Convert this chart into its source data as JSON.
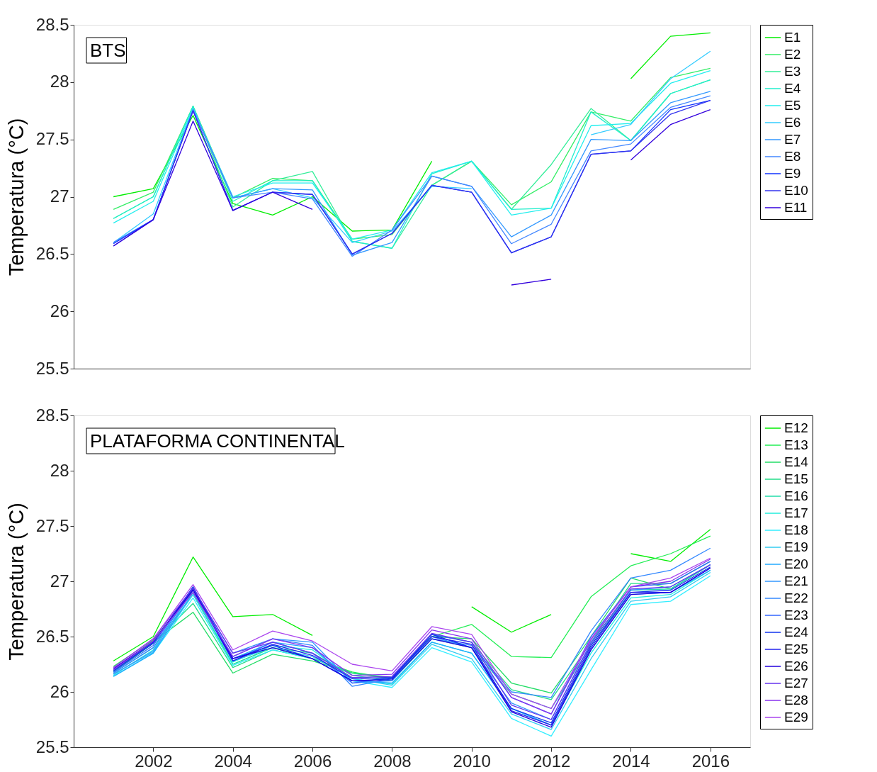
{
  "chart_data": [
    {
      "type": "line",
      "ylabel": "Temperatura (°C)",
      "annotations": [
        "BTS"
      ],
      "x": [
        2001,
        2002,
        2003,
        2004,
        2005,
        2006,
        2007,
        2008,
        2009,
        2010,
        2011,
        2012,
        2013,
        2014,
        2015,
        2016
      ],
      "xlim": [
        2000,
        2017
      ],
      "xticks": [
        2002,
        2004,
        2006,
        2008,
        2010,
        2012,
        2014,
        2016
      ],
      "ylim": [
        25.5,
        28.5
      ],
      "yticks": [
        25.5,
        26,
        26.5,
        27,
        27.5,
        28,
        28.5
      ],
      "tick_labels": "y",
      "grid": false,
      "legend": "right",
      "series": [
        {
          "name": "E1",
          "color": "#00ee00",
          "values": [
            27.0,
            27.07,
            27.71,
            26.94,
            26.84,
            27.0,
            26.7,
            26.71,
            27.31,
            null,
            null,
            null,
            null,
            28.03,
            28.4,
            28.43
          ]
        },
        {
          "name": "E2",
          "color": "#33ee66",
          "values": [
            26.89,
            27.04,
            27.79,
            26.99,
            27.16,
            27.14,
            26.63,
            26.67,
            27.1,
            27.31,
            26.93,
            27.13,
            27.74,
            27.66,
            28.04,
            28.12
          ]
        },
        {
          "name": "E3",
          "color": "#33ee99",
          "values": [
            26.81,
            27.0,
            27.79,
            26.91,
            27.14,
            27.22,
            26.61,
            26.55,
            27.1,
            27.31,
            26.89,
            27.28,
            27.77,
            27.49,
            27.9,
            28.02
          ]
        },
        {
          "name": "E4",
          "color": "#22eecc",
          "values": [
            26.81,
            27.0,
            27.79,
            26.96,
            27.14,
            27.14,
            26.61,
            26.55,
            27.2,
            27.31,
            26.89,
            26.9,
            27.74,
            27.49,
            27.9,
            28.02
          ]
        },
        {
          "name": "E5",
          "color": "#22eeee",
          "values": [
            26.77,
            26.96,
            27.77,
            27.0,
            27.12,
            27.12,
            26.63,
            26.71,
            27.21,
            27.31,
            26.84,
            26.9,
            27.62,
            27.64,
            27.99,
            28.1
          ]
        },
        {
          "name": "E6",
          "color": "#33ccff",
          "values": [
            26.6,
            26.85,
            27.77,
            26.99,
            27.07,
            26.99,
            26.6,
            26.7,
            27.09,
            27.07,
            null,
            null,
            27.54,
            27.63,
            28.03,
            28.27
          ]
        },
        {
          "name": "E7",
          "color": "#3399ff",
          "values": [
            26.6,
            26.8,
            27.76,
            26.99,
            27.07,
            27.06,
            26.49,
            26.6,
            27.18,
            27.09,
            26.65,
            26.84,
            27.5,
            27.49,
            27.82,
            27.92
          ]
        },
        {
          "name": "E8",
          "color": "#4488ff",
          "values": [
            26.6,
            26.8,
            27.76,
            26.99,
            27.04,
            26.98,
            26.48,
            26.71,
            27.18,
            27.09,
            26.59,
            26.76,
            27.4,
            27.46,
            27.78,
            27.88
          ]
        },
        {
          "name": "E9",
          "color": "#1133ff",
          "values": [
            26.59,
            26.8,
            27.75,
            26.88,
            27.04,
            27.02,
            26.5,
            26.68,
            27.1,
            27.04,
            26.51,
            26.65,
            27.37,
            27.4,
            27.76,
            27.84
          ]
        },
        {
          "name": "E10",
          "color": "#3333ee",
          "values": [
            26.57,
            26.8,
            27.75,
            26.88,
            27.04,
            27.02,
            26.5,
            26.68,
            27.1,
            27.04,
            26.51,
            26.65,
            27.37,
            27.4,
            27.72,
            27.84
          ]
        },
        {
          "name": "E11",
          "color": "#3300dd",
          "values": [
            26.57,
            26.8,
            27.66,
            26.88,
            27.04,
            26.89,
            null,
            null,
            null,
            null,
            26.23,
            26.28,
            null,
            27.32,
            27.63,
            27.76
          ]
        }
      ]
    },
    {
      "type": "line",
      "ylabel": "Temperatura (°C)",
      "annotations": [
        "PLATAFORMA CONTINENTAL"
      ],
      "x": [
        2001,
        2002,
        2003,
        2004,
        2005,
        2006,
        2007,
        2008,
        2009,
        2010,
        2011,
        2012,
        2013,
        2014,
        2015,
        2016
      ],
      "xlim": [
        2000,
        2017
      ],
      "xticks": [
        2002,
        2004,
        2006,
        2008,
        2010,
        2012,
        2014,
        2016
      ],
      "ylim": [
        25.5,
        28.5
      ],
      "yticks": [
        25.5,
        26,
        26.5,
        27,
        27.5,
        28,
        28.5
      ],
      "grid": false,
      "legend": "right",
      "series": [
        {
          "name": "E12",
          "color": "#00ee00",
          "values": [
            26.28,
            26.5,
            27.22,
            26.68,
            26.7,
            26.51,
            null,
            null,
            null,
            26.77,
            26.54,
            26.7,
            null,
            27.25,
            27.18,
            27.47
          ]
        },
        {
          "name": "E13",
          "color": "#22ee55",
          "values": [
            26.23,
            26.47,
            26.9,
            26.25,
            26.4,
            26.3,
            26.18,
            26.12,
            26.5,
            26.61,
            26.32,
            26.31,
            26.86,
            27.14,
            27.25,
            27.41
          ]
        },
        {
          "name": "E14",
          "color": "#22dd66",
          "values": [
            26.19,
            26.45,
            26.72,
            26.17,
            26.34,
            26.28,
            26.17,
            26.12,
            26.5,
            26.48,
            26.08,
            25.99,
            26.5,
            27.03,
            26.93,
            27.15
          ]
        },
        {
          "name": "E15",
          "color": "#22dd88",
          "values": [
            26.18,
            26.44,
            26.8,
            26.22,
            26.38,
            26.3,
            26.17,
            26.13,
            26.52,
            26.45,
            26.02,
            25.93,
            26.45,
            26.98,
            26.98,
            27.18
          ]
        },
        {
          "name": "E16",
          "color": "#22ddaa",
          "values": [
            26.17,
            26.4,
            26.88,
            26.25,
            26.4,
            26.35,
            26.15,
            26.1,
            26.48,
            26.4,
            25.98,
            25.85,
            26.42,
            26.92,
            26.93,
            27.15
          ]
        },
        {
          "name": "E17",
          "color": "#22eedd",
          "values": [
            26.15,
            26.38,
            26.95,
            26.27,
            26.42,
            26.38,
            26.12,
            26.07,
            26.45,
            26.35,
            25.85,
            25.7,
            26.35,
            26.85,
            26.88,
            27.1
          ]
        },
        {
          "name": "E18",
          "color": "#33eeff",
          "values": [
            26.14,
            26.35,
            26.85,
            26.24,
            26.38,
            26.3,
            26.1,
            26.04,
            26.4,
            26.27,
            25.76,
            25.6,
            26.2,
            26.79,
            26.82,
            27.05
          ]
        },
        {
          "name": "E19",
          "color": "#33ccf0",
          "values": [
            26.16,
            26.36,
            26.88,
            26.28,
            26.4,
            26.32,
            26.12,
            26.06,
            26.43,
            26.3,
            25.8,
            25.66,
            26.3,
            26.82,
            26.86,
            27.08
          ]
        },
        {
          "name": "E20",
          "color": "#22aaff",
          "values": [
            26.14,
            26.35,
            26.9,
            26.3,
            26.45,
            26.4,
            26.1,
            26.08,
            26.45,
            26.35,
            25.85,
            25.7,
            26.38,
            26.88,
            26.9,
            27.1
          ]
        },
        {
          "name": "E21",
          "color": "#3399ff",
          "values": [
            26.16,
            26.37,
            26.92,
            26.32,
            26.48,
            26.45,
            26.08,
            26.1,
            26.5,
            26.4,
            25.9,
            25.75,
            26.45,
            26.92,
            26.95,
            27.15
          ]
        },
        {
          "name": "E22",
          "color": "#3388ff",
          "values": [
            26.17,
            26.4,
            26.93,
            26.35,
            26.48,
            26.42,
            26.05,
            26.12,
            26.48,
            26.42,
            26.0,
            25.95,
            26.55,
            27.03,
            27.1,
            27.3
          ]
        },
        {
          "name": "E23",
          "color": "#3366ff",
          "values": [
            26.18,
            26.42,
            26.94,
            26.28,
            26.45,
            26.35,
            26.08,
            26.13,
            26.52,
            26.45,
            25.95,
            25.8,
            26.5,
            26.95,
            26.98,
            27.18
          ]
        },
        {
          "name": "E24",
          "color": "#1133ee",
          "values": [
            26.19,
            26.44,
            26.95,
            26.3,
            26.42,
            26.3,
            26.1,
            26.12,
            26.52,
            26.4,
            25.85,
            25.72,
            26.42,
            26.9,
            26.92,
            27.13
          ]
        },
        {
          "name": "E25",
          "color": "#2222ee",
          "values": [
            26.2,
            26.45,
            26.93,
            26.28,
            26.43,
            26.33,
            26.12,
            26.13,
            26.5,
            26.43,
            25.83,
            25.7,
            26.4,
            26.9,
            26.9,
            27.12
          ]
        },
        {
          "name": "E26",
          "color": "#2200dd",
          "values": [
            26.21,
            26.46,
            26.92,
            26.3,
            26.4,
            26.3,
            26.1,
            26.11,
            26.48,
            26.4,
            25.82,
            25.68,
            26.38,
            26.88,
            26.9,
            27.12
          ]
        },
        {
          "name": "E27",
          "color": "#6633ee",
          "values": [
            26.22,
            26.48,
            26.94,
            26.35,
            26.45,
            26.35,
            26.13,
            26.14,
            26.53,
            26.45,
            25.88,
            25.75,
            26.44,
            26.93,
            26.95,
            27.15
          ]
        },
        {
          "name": "E28",
          "color": "#8833ee",
          "values": [
            26.2,
            26.46,
            26.9,
            26.32,
            26.48,
            26.4,
            26.15,
            26.16,
            26.56,
            26.48,
            25.95,
            25.8,
            26.47,
            26.95,
            27.0,
            27.2
          ]
        },
        {
          "name": "E29",
          "color": "#aa44ee",
          "values": [
            26.22,
            26.48,
            26.97,
            26.38,
            26.55,
            26.46,
            26.25,
            26.19,
            26.59,
            26.52,
            25.98,
            25.85,
            26.48,
            26.95,
            27.03,
            27.21
          ]
        }
      ]
    }
  ]
}
